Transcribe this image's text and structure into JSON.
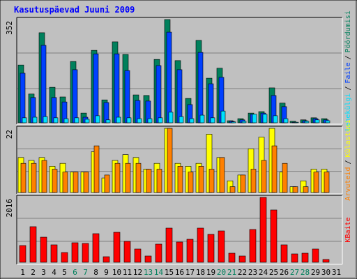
{
  "title": "Kasutuspäevad Juuni 2009",
  "separator": "/",
  "chart_data": [
    {
      "type": "bar",
      "ylim": [
        0,
        352
      ],
      "yticks": [
        352
      ],
      "series": [
        {
          "name": "Pöördumisi",
          "color": "#00805c",
          "values": [
            197,
            98,
            307,
            121,
            88,
            209,
            33,
            247,
            78,
            276,
            233,
            95,
            93,
            216,
            352,
            212,
            83,
            281,
            152,
            186,
            7,
            14,
            33,
            38,
            119,
            67,
            5,
            10,
            17,
            14,
            0
          ]
        },
        {
          "name": "Faile",
          "color": "#0040ff",
          "values": [
            169,
            86,
            264,
            86,
            71,
            181,
            19,
            235,
            69,
            235,
            178,
            76,
            74,
            195,
            309,
            181,
            62,
            240,
            133,
            155,
            5,
            10,
            29,
            33,
            93,
            55,
            2,
            7,
            14,
            10,
            0
          ]
        },
        {
          "name": "Lehekülgi",
          "color": "#00e0ff",
          "values": [
            17,
            19,
            21,
            17,
            14,
            17,
            12,
            24,
            10,
            19,
            17,
            14,
            14,
            17,
            36,
            21,
            14,
            26,
            17,
            40,
            3,
            5,
            29,
            29,
            24,
            14,
            2,
            5,
            10,
            7,
            0
          ]
        }
      ]
    },
    {
      "type": "bar",
      "ylim": [
        0,
        22
      ],
      "yticks": [
        22
      ],
      "series": [
        {
          "name": "Külastusi",
          "color": "#ffff00",
          "values": [
            12,
            11,
            12,
            9,
            10,
            7,
            7,
            14,
            5,
            11,
            13,
            12,
            8,
            10,
            22,
            10,
            9,
            10,
            20,
            12,
            4,
            6,
            15,
            19,
            22,
            7,
            2,
            4,
            8,
            8,
            0
          ]
        },
        {
          "name": "Arvuteid",
          "color": "#ff8000",
          "values": [
            10,
            10,
            11,
            8,
            7,
            7,
            7,
            16,
            6,
            10,
            10,
            10,
            8,
            8,
            22,
            9,
            7,
            9,
            8,
            12,
            2,
            6,
            8,
            11,
            16,
            10,
            2,
            2,
            7,
            7,
            0
          ]
        }
      ]
    },
    {
      "type": "bar",
      "ylim": [
        0,
        2016
      ],
      "yticks": [
        2016
      ],
      "categories": [
        "1",
        "2",
        "3",
        "4",
        "5",
        "6",
        "7",
        "8",
        "9",
        "10",
        "11",
        "12",
        "13",
        "14",
        "15",
        "16",
        "17",
        "18",
        "19",
        "20",
        "21",
        "22",
        "23",
        "24",
        "25",
        "26",
        "27",
        "28",
        "29",
        "30",
        "31"
      ],
      "category_colors": [
        "#000000",
        "#000000",
        "#000000",
        "#000000",
        "#000000",
        "#00805c",
        "#00805c",
        "#000000",
        "#000000",
        "#000000",
        "#000000",
        "#000000",
        "#00805c",
        "#00805c",
        "#000000",
        "#000000",
        "#000000",
        "#000000",
        "#000000",
        "#00805c",
        "#00805c",
        "#000000",
        "#000000",
        "#000000",
        "#000000",
        "#000000",
        "#00805c",
        "#00805c",
        "#000000",
        "#000000",
        "#000000"
      ],
      "series": [
        {
          "name": "KBaite",
          "color": "#ff0000",
          "values": [
            520,
            1106,
            780,
            542,
            303,
            607,
            585,
            889,
            173,
            932,
            650,
            412,
            195,
            564,
            1062,
            629,
            715,
            1062,
            867,
            975,
            282,
            195,
            1019,
            2016,
            1626,
            542,
            260,
            282,
            412,
            87,
            0
          ]
        }
      ]
    }
  ]
}
